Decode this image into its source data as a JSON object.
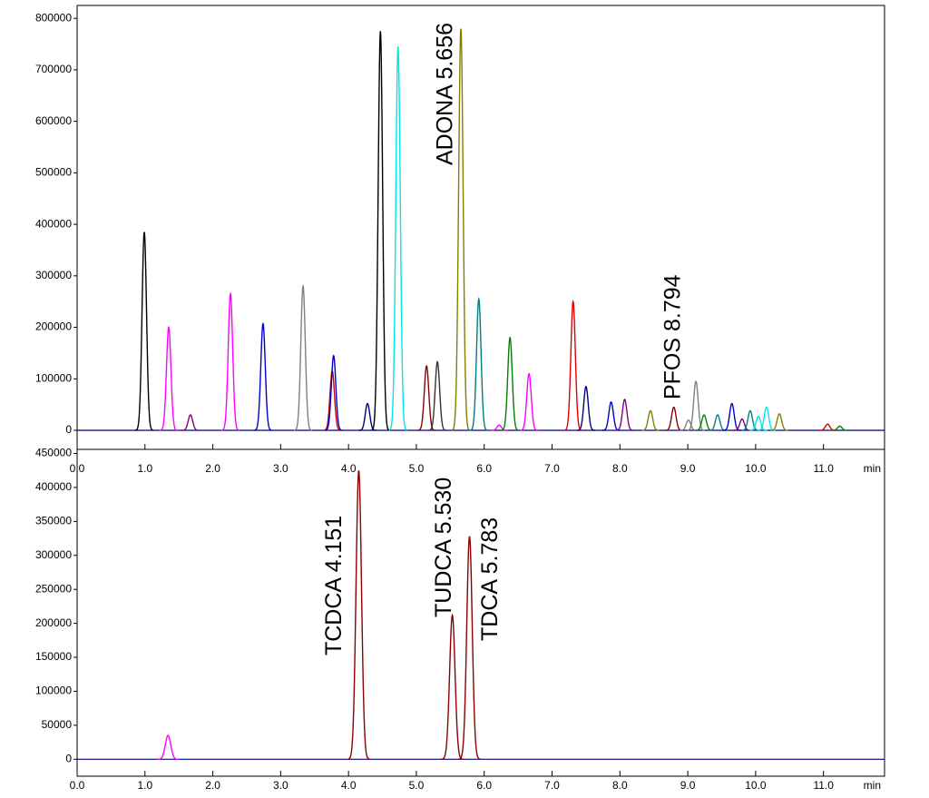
{
  "chart_data": [
    {
      "type": "chromatogram",
      "x_label": "min",
      "xlim": [
        0,
        11.9
      ],
      "ylim": [
        -37000,
        825000
      ],
      "xticks": [
        {
          "value": 0,
          "label": "0.0"
        },
        {
          "value": 1,
          "label": "1.0"
        },
        {
          "value": 2,
          "label": "2.0"
        },
        {
          "value": 3,
          "label": "3.0"
        },
        {
          "value": 4,
          "label": "4.0"
        },
        {
          "value": 5,
          "label": "5.0"
        },
        {
          "value": 6,
          "label": "6.0"
        },
        {
          "value": 7,
          "label": "7.0"
        },
        {
          "value": 8,
          "label": "8.0"
        },
        {
          "value": 9,
          "label": "9.0"
        },
        {
          "value": 10,
          "label": "10.0"
        },
        {
          "value": 11,
          "label": "11.0"
        }
      ],
      "yticks": [
        0,
        100000,
        200000,
        300000,
        400000,
        500000,
        600000,
        700000,
        800000
      ],
      "peaks": [
        {
          "x": 0.99,
          "height": 385000,
          "color": "#000000"
        },
        {
          "x": 1.35,
          "height": 200000,
          "color": "#ff00ff"
        },
        {
          "x": 1.67,
          "height": 30000,
          "color": "#800080"
        },
        {
          "x": 2.26,
          "height": 265000,
          "color": "#ff00ff"
        },
        {
          "x": 2.74,
          "height": 207000,
          "color": "#0000cc"
        },
        {
          "x": 3.33,
          "height": 280000,
          "color": "#808080"
        },
        {
          "x": 3.76,
          "height": 115000,
          "color": "#cc0000"
        },
        {
          "x": 3.78,
          "height": 145000,
          "color": "#0000cc"
        },
        {
          "x": 4.28,
          "height": 52000,
          "color": "#000080"
        },
        {
          "x": 4.47,
          "height": 775000,
          "color": "#000000"
        },
        {
          "x": 4.73,
          "height": 745000,
          "color": "#00e5e5"
        },
        {
          "x": 5.15,
          "height": 125000,
          "color": "#8b0000"
        },
        {
          "x": 5.31,
          "height": 133000,
          "color": "#333333"
        },
        {
          "x": 5.656,
          "height": 780000,
          "color": "#808000",
          "label": "ADONA 5.656"
        },
        {
          "x": 5.92,
          "height": 255000,
          "color": "#008080"
        },
        {
          "x": 6.22,
          "height": 10000,
          "color": "#ff00ff"
        },
        {
          "x": 6.38,
          "height": 180000,
          "color": "#008000"
        },
        {
          "x": 6.66,
          "height": 110000,
          "color": "#ff00ff"
        },
        {
          "x": 7.31,
          "height": 250000,
          "color": "#dd0000"
        },
        {
          "x": 7.5,
          "height": 85000,
          "color": "#000080"
        },
        {
          "x": 7.87,
          "height": 55000,
          "color": "#0000cc"
        },
        {
          "x": 8.07,
          "height": 60000,
          "color": "#800080"
        },
        {
          "x": 8.45,
          "height": 38000,
          "color": "#808000"
        },
        {
          "x": 8.794,
          "height": 45000,
          "color": "#8b0000",
          "label": "PFOS 8.794"
        },
        {
          "x": 9.01,
          "height": 20000,
          "color": "#808080"
        },
        {
          "x": 9.12,
          "height": 95000,
          "color": "#808080"
        },
        {
          "x": 9.24,
          "height": 30000,
          "color": "#008000"
        },
        {
          "x": 9.44,
          "height": 30000,
          "color": "#008080"
        },
        {
          "x": 9.65,
          "height": 52000,
          "color": "#0000cc"
        },
        {
          "x": 9.8,
          "height": 22000,
          "color": "#800080"
        },
        {
          "x": 9.92,
          "height": 38000,
          "color": "#008080"
        },
        {
          "x": 10.04,
          "height": 27000,
          "color": "#00e5e5"
        },
        {
          "x": 10.16,
          "height": 45000,
          "color": "#00e5e5"
        },
        {
          "x": 10.35,
          "height": 32000,
          "color": "#808000"
        },
        {
          "x": 11.06,
          "height": 12000,
          "color": "#dd0000"
        },
        {
          "x": 11.24,
          "height": 8000,
          "color": "#008000"
        }
      ]
    },
    {
      "type": "chromatogram",
      "x_label": "min",
      "xlim": [
        0,
        11.9
      ],
      "ylim": [
        -25000,
        456000
      ],
      "xticks": [
        {
          "value": 0,
          "label": "0.0"
        },
        {
          "value": 1,
          "label": "1.0"
        },
        {
          "value": 2,
          "label": "2.0"
        },
        {
          "value": 3,
          "label": "3.0"
        },
        {
          "value": 4,
          "label": "4.0"
        },
        {
          "value": 5,
          "label": "5.0"
        },
        {
          "value": 6,
          "label": "6.0"
        },
        {
          "value": 7,
          "label": "7.0"
        },
        {
          "value": 8,
          "label": "8.0"
        },
        {
          "value": 9,
          "label": "9.0"
        },
        {
          "value": 10,
          "label": "10.0"
        },
        {
          "value": 11,
          "label": "11.0"
        }
      ],
      "yticks": [
        0,
        50000,
        100000,
        150000,
        200000,
        250000,
        300000,
        350000,
        400000,
        450000
      ],
      "peaks": [
        {
          "x": 1.34,
          "height": 35000,
          "color": "#ff00ff"
        },
        {
          "x": 4.151,
          "height": 425000,
          "color": "#8b0000",
          "label": "TCDCA 4.151"
        },
        {
          "x": 5.53,
          "height": 212000,
          "color": "#8b0000",
          "label": "TUDCA 5.530"
        },
        {
          "x": 5.783,
          "height": 328000,
          "color": "#8b0000",
          "label": "TDCA 5.783"
        }
      ]
    }
  ]
}
